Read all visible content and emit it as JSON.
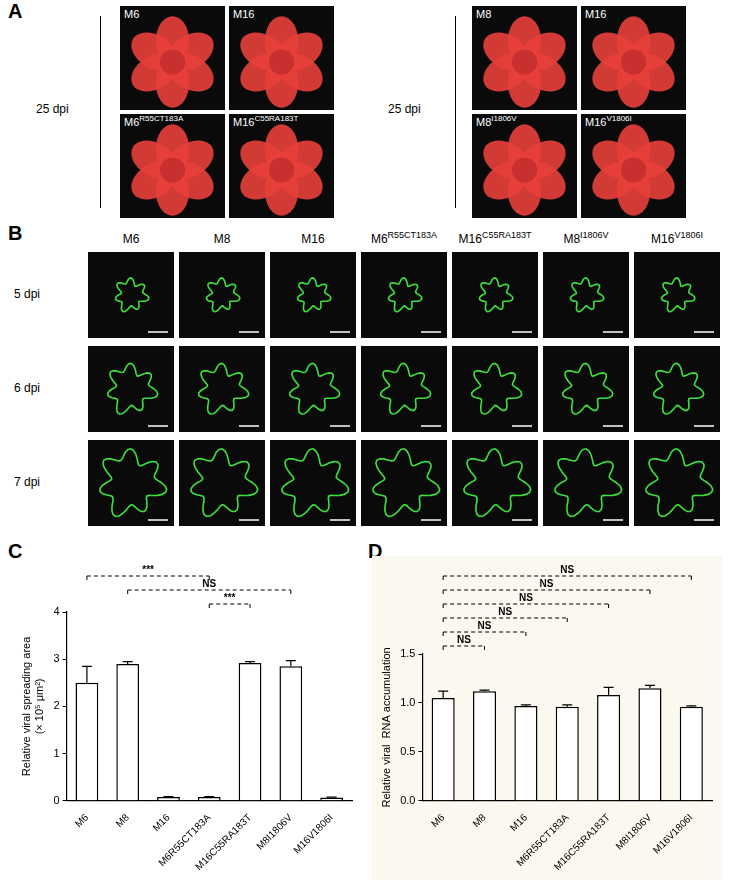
{
  "panels": {
    "A": {
      "letter": "A",
      "groups": [
        {
          "time_label": "25 dpi",
          "images": [
            {
              "label": "M6"
            },
            {
              "label": "M16"
            },
            {
              "label": "M6",
              "superscript": "R55CT183A"
            },
            {
              "label": "M16",
              "superscript": "C55RA183T"
            }
          ]
        },
        {
          "time_label": "25 dpi",
          "images": [
            {
              "label": "M8"
            },
            {
              "label": "M16"
            },
            {
              "label": "M8",
              "superscript": "I1806V"
            },
            {
              "label": "M16",
              "superscript": "V1806I"
            }
          ]
        }
      ]
    },
    "B": {
      "letter": "B",
      "columns": [
        {
          "label": "M6"
        },
        {
          "label": "M8"
        },
        {
          "label": "M16"
        },
        {
          "label": "M6",
          "superscript": "R55CT183A"
        },
        {
          "label": "M16",
          "superscript": "C55RA183T"
        },
        {
          "label": "M8",
          "superscript": "I1806V"
        },
        {
          "label": "M16",
          "superscript": "V1806I"
        }
      ],
      "rows": [
        "5 dpi",
        "6 dpi",
        "7 dpi"
      ]
    }
  },
  "chart_data": [
    {
      "letter": "C",
      "type": "bar",
      "categories": [
        "M6",
        "M8",
        "M16",
        "M6R55CT183A",
        "M16C55RA183T",
        "M8I1806V",
        "M16V1806I"
      ],
      "values": [
        2.5,
        2.9,
        0.08,
        0.08,
        2.92,
        2.85,
        0.07
      ],
      "errors": [
        0.35,
        0.05,
        0.01,
        0.01,
        0.03,
        0.12,
        0.01
      ],
      "y_label": [
        "Relative viral spreading area",
        "(× 10⁵ μm²)"
      ],
      "ylim": [
        0,
        4
      ],
      "yticks": [
        0,
        1,
        2,
        3,
        4
      ],
      "color": "#ffffff",
      "grid": false,
      "comparisons": [
        {
          "from": "M6",
          "to": "M6R55CT183A",
          "label": "***"
        },
        {
          "from": "M8",
          "to": "M8I1806V",
          "label": "NS"
        },
        {
          "from": "M6R55CT183A",
          "to": "M16C55RA183T",
          "label": "***"
        }
      ]
    },
    {
      "letter": "D",
      "type": "bar",
      "categories": [
        "M6",
        "M8",
        "M16",
        "M6R55CT183A",
        "M16C55RA183T",
        "M8I1806V",
        "M16V1806I"
      ],
      "values": [
        1.05,
        1.12,
        0.97,
        0.96,
        1.08,
        1.15,
        0.96
      ],
      "errors": [
        0.07,
        0.01,
        0.01,
        0.02,
        0.08,
        0.03,
        0.01
      ],
      "y_label": [
        "Relative viral  RNA accumulation"
      ],
      "ylim": [
        0,
        1.5
      ],
      "yticks": [
        {
          "value": 0,
          "label": "0.0"
        },
        {
          "value": 0.5,
          "label": "0.5"
        },
        {
          "value": 1,
          "label": "1.0"
        },
        {
          "value": 1.5,
          "label": "1.5"
        }
      ],
      "color": "#ffffff",
      "grid": false,
      "comparisons": [
        {
          "from": "M6",
          "to": "M16V1806I",
          "label": "NS"
        },
        {
          "from": "M6",
          "to": "M8I1806V",
          "label": "NS"
        },
        {
          "from": "M6",
          "to": "M16C55RA183T",
          "label": "NS"
        },
        {
          "from": "M6",
          "to": "M6R55CT183A",
          "label": "NS"
        },
        {
          "from": "M6",
          "to": "M16",
          "label": "NS"
        },
        {
          "from": "M6",
          "to": "M8",
          "label": "NS"
        }
      ]
    }
  ]
}
